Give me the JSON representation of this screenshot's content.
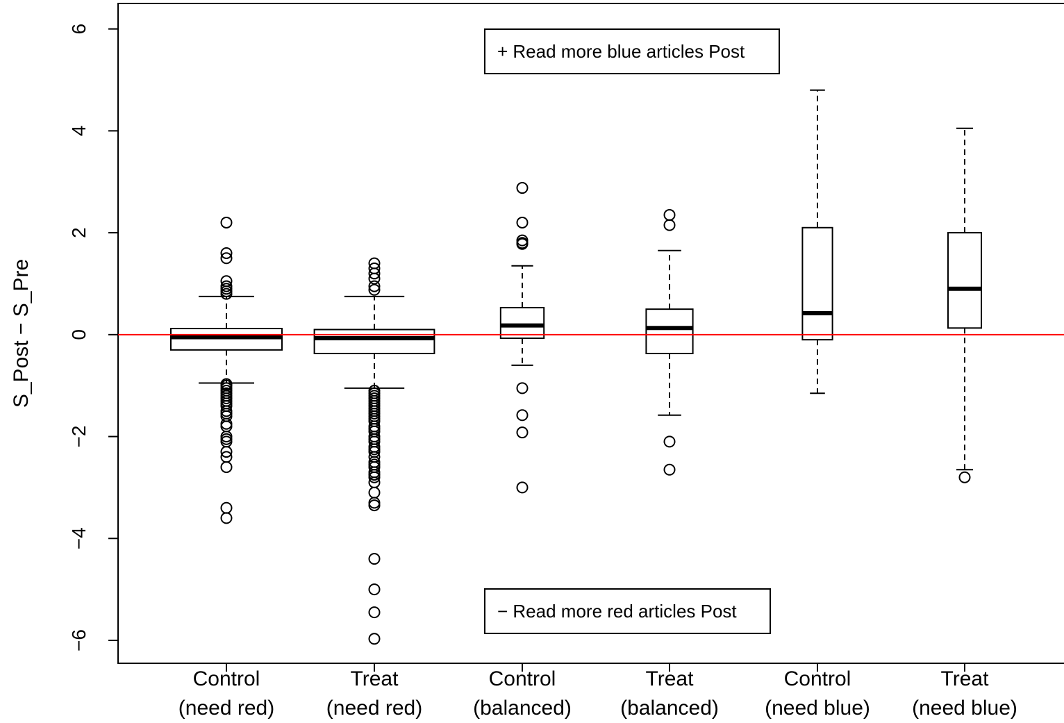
{
  "chart_data": {
    "type": "box",
    "ylabel": "S_Post − S_Pre",
    "xlabel": "",
    "ylim": [
      -6.45,
      6.5
    ],
    "yticks": [
      -6,
      -4,
      -2,
      0,
      2,
      4,
      6
    ],
    "ytick_labels": [
      "−6",
      "−4",
      "−2",
      "0",
      "2",
      "4",
      "6"
    ],
    "grid": false,
    "reference_line": {
      "y": 0,
      "color": "#ff0000"
    },
    "annotations": [
      {
        "id": "upper",
        "text": "+  Read more blue articles Post"
      },
      {
        "id": "lower",
        "text": "−  Read more red articles Post"
      }
    ],
    "categories": [
      {
        "line1": "Control",
        "line2": "(need red)"
      },
      {
        "line1": "Treat",
        "line2": "(need red)"
      },
      {
        "line1": "Control",
        "line2": "(balanced)"
      },
      {
        "line1": "Treat",
        "line2": "(balanced)"
      },
      {
        "line1": "Control",
        "line2": "(need blue)"
      },
      {
        "line1": "Treat",
        "line2": "(need blue)"
      }
    ],
    "relative_widths": [
      1.0,
      1.08,
      0.39,
      0.42,
      0.27,
      0.3
    ],
    "boxes": [
      {
        "whisker_low": -0.95,
        "q1": -0.3,
        "median": -0.05,
        "q3": 0.12,
        "whisker_high": 0.75,
        "outliers": [
          2.2,
          1.6,
          1.5,
          1.05,
          0.95,
          0.9,
          0.85,
          0.8,
          -0.97,
          -1.0,
          -1.05,
          -1.1,
          -1.15,
          -1.2,
          -1.25,
          -1.3,
          -1.35,
          -1.4,
          -1.5,
          -1.55,
          -1.6,
          -1.75,
          -1.8,
          -2.0,
          -2.05,
          -2.1,
          -2.3,
          -2.4,
          -2.6,
          -3.4,
          -3.6
        ]
      },
      {
        "whisker_low": -1.05,
        "q1": -0.37,
        "median": -0.07,
        "q3": 0.1,
        "whisker_high": 0.75,
        "outliers": [
          1.4,
          1.3,
          1.2,
          1.1,
          0.95,
          0.88,
          -1.1,
          -1.15,
          -1.2,
          -1.25,
          -1.3,
          -1.35,
          -1.4,
          -1.45,
          -1.5,
          -1.55,
          -1.6,
          -1.65,
          -1.7,
          -1.8,
          -1.85,
          -1.9,
          -2.0,
          -2.05,
          -2.1,
          -2.2,
          -2.25,
          -2.3,
          -2.4,
          -2.5,
          -2.55,
          -2.6,
          -2.7,
          -2.75,
          -2.8,
          -2.9,
          -3.1,
          -3.3,
          -3.35,
          -4.4,
          -5.0,
          -5.45,
          -5.97
        ]
      },
      {
        "whisker_low": -0.6,
        "q1": -0.07,
        "median": 0.18,
        "q3": 0.53,
        "whisker_high": 1.35,
        "outliers": [
          2.88,
          2.2,
          1.85,
          1.8,
          1.78,
          -1.05,
          -1.58,
          -1.92,
          -3.0
        ]
      },
      {
        "whisker_low": -1.58,
        "q1": -0.37,
        "median": 0.13,
        "q3": 0.5,
        "whisker_high": 1.65,
        "outliers": [
          2.35,
          2.15,
          -2.1,
          -2.65
        ]
      },
      {
        "whisker_low": -1.15,
        "q1": -0.1,
        "median": 0.42,
        "q3": 2.1,
        "whisker_high": 4.8,
        "outliers": []
      },
      {
        "whisker_low": -2.65,
        "q1": 0.13,
        "median": 0.9,
        "q3": 2.0,
        "whisker_high": 4.05,
        "outliers": [
          -2.8
        ]
      }
    ]
  }
}
